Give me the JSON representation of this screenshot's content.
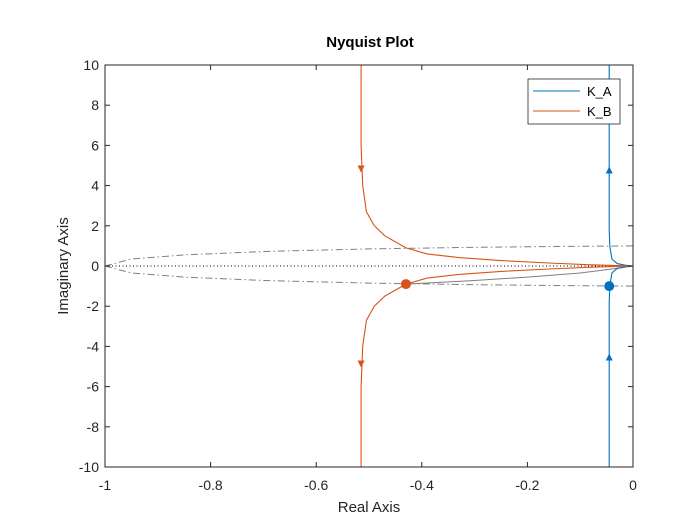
{
  "chart_data": {
    "type": "line",
    "title": "Nyquist Plot",
    "xlabel": "Real Axis",
    "ylabel": "Imaginary Axis",
    "xlim": [
      -1,
      0
    ],
    "ylim": [
      -10,
      10
    ],
    "xticks": [
      -1,
      -0.8,
      -0.6,
      -0.4,
      -0.2,
      0
    ],
    "xtick_labels": [
      "-1",
      "-0.8",
      "-0.6",
      "-0.4",
      "-0.2",
      "0"
    ],
    "yticks": [
      -10,
      -8,
      -6,
      -4,
      -2,
      0,
      2,
      4,
      6,
      8,
      10
    ],
    "ytick_labels": [
      "-10",
      "-8",
      "-6",
      "-4",
      "-2",
      "0",
      "2",
      "4",
      "6",
      "8",
      "10"
    ],
    "grid": false,
    "legend_position": "top-right",
    "series": [
      {
        "name": "K_A",
        "color": "#0072BD",
        "asymptote_x": -0.045,
        "marker_point": {
          "x": -0.045,
          "y": -1.0
        },
        "arrows": [
          {
            "x": -0.045,
            "y": 4.7,
            "dir": "up"
          },
          {
            "x": -0.045,
            "y": -4.6,
            "dir": "up"
          }
        ],
        "points_lower": [
          [
            -0.045,
            -10
          ],
          [
            -0.045,
            -6
          ],
          [
            -0.045,
            -3
          ],
          [
            -0.045,
            -1.8
          ],
          [
            -0.044,
            -1.0
          ],
          [
            -0.04,
            -0.35
          ],
          [
            -0.03,
            -0.12
          ],
          [
            -0.015,
            -0.04
          ],
          [
            0,
            0
          ]
        ],
        "points_upper": [
          [
            0,
            0
          ],
          [
            -0.015,
            0.04
          ],
          [
            -0.03,
            0.12
          ],
          [
            -0.04,
            0.35
          ],
          [
            -0.044,
            1.0
          ],
          [
            -0.045,
            1.8
          ],
          [
            -0.045,
            3
          ],
          [
            -0.045,
            6
          ],
          [
            -0.045,
            10
          ]
        ]
      },
      {
        "name": "K_B",
        "color": "#D95319",
        "asymptote_x": -0.515,
        "marker_point": {
          "x": -0.43,
          "y": -0.9
        },
        "arrows": [
          {
            "x": -0.515,
            "y": 4.9,
            "dir": "down"
          },
          {
            "x": -0.515,
            "y": -4.8,
            "dir": "down"
          }
        ],
        "points_lower": [
          [
            -0.515,
            -10
          ],
          [
            -0.515,
            -6
          ],
          [
            -0.512,
            -4
          ],
          [
            -0.505,
            -2.7
          ],
          [
            -0.49,
            -2.0
          ],
          [
            -0.47,
            -1.5
          ],
          [
            -0.43,
            -0.9
          ],
          [
            -0.39,
            -0.6
          ],
          [
            -0.33,
            -0.42
          ],
          [
            -0.25,
            -0.27
          ],
          [
            -0.16,
            -0.15
          ],
          [
            -0.08,
            -0.06
          ],
          [
            -0.03,
            -0.02
          ],
          [
            0,
            0
          ]
        ],
        "points_upper": [
          [
            0,
            0
          ],
          [
            -0.03,
            0.02
          ],
          [
            -0.08,
            0.06
          ],
          [
            -0.16,
            0.15
          ],
          [
            -0.25,
            0.27
          ],
          [
            -0.33,
            0.42
          ],
          [
            -0.39,
            0.6
          ],
          [
            -0.43,
            0.9
          ],
          [
            -0.47,
            1.5
          ],
          [
            -0.49,
            2.0
          ],
          [
            -0.505,
            2.7
          ],
          [
            -0.512,
            4
          ],
          [
            -0.515,
            6
          ],
          [
            -0.515,
            10
          ]
        ]
      }
    ],
    "reference_curves": [
      {
        "color": "#7f7f7f",
        "style": "dash-dot",
        "points": [
          [
            -1,
            0
          ],
          [
            -0.95,
            0.35
          ],
          [
            -0.85,
            0.55
          ],
          [
            -0.7,
            0.72
          ],
          [
            -0.5,
            0.85
          ],
          [
            -0.3,
            0.93
          ],
          [
            -0.15,
            0.97
          ],
          [
            0,
            1.0
          ]
        ]
      },
      {
        "color": "#7f7f7f",
        "style": "dash-dot",
        "points": [
          [
            -1,
            0
          ],
          [
            -0.95,
            -0.35
          ],
          [
            -0.85,
            -0.55
          ],
          [
            -0.7,
            -0.72
          ],
          [
            -0.5,
            -0.85
          ],
          [
            -0.3,
            -0.93
          ],
          [
            -0.15,
            -0.97
          ],
          [
            0,
            -1.0
          ]
        ]
      },
      {
        "color": "#7f7f7f",
        "style": "solid",
        "points": [
          [
            -0.43,
            -0.9
          ],
          [
            -0.3,
            -0.72
          ],
          [
            -0.2,
            -0.55
          ],
          [
            -0.1,
            -0.35
          ],
          [
            -0.04,
            -0.15
          ],
          [
            0,
            0
          ]
        ]
      },
      {
        "color": "#000000",
        "style": "dotted",
        "points": [
          [
            -1,
            0
          ],
          [
            0,
            0
          ]
        ]
      }
    ]
  }
}
